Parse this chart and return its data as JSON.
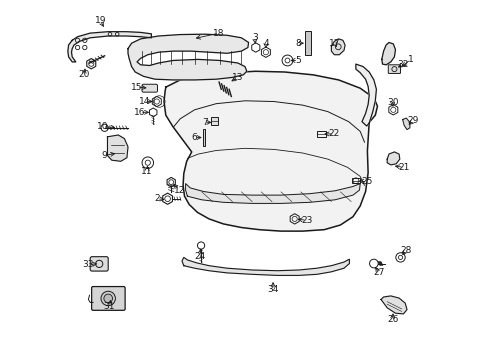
{
  "bg_color": "#ffffff",
  "line_color": "#1a1a1a",
  "figsize": [
    4.9,
    3.6
  ],
  "dpi": 100,
  "label_info": [
    [
      1,
      0.93,
      0.81,
      0.96,
      0.835
    ],
    [
      2,
      0.285,
      0.445,
      0.255,
      0.448
    ],
    [
      3,
      0.53,
      0.87,
      0.527,
      0.895
    ],
    [
      4,
      0.558,
      0.858,
      0.558,
      0.88
    ],
    [
      5,
      0.618,
      0.832,
      0.648,
      0.832
    ],
    [
      6,
      0.388,
      0.618,
      0.36,
      0.618
    ],
    [
      7,
      0.415,
      0.66,
      0.388,
      0.66
    ],
    [
      8,
      0.672,
      0.88,
      0.648,
      0.88
    ],
    [
      9,
      0.148,
      0.575,
      0.108,
      0.568
    ],
    [
      10,
      0.148,
      0.645,
      0.105,
      0.648
    ],
    [
      11,
      0.23,
      0.548,
      0.228,
      0.525
    ],
    [
      12,
      0.295,
      0.495,
      0.318,
      0.472
    ],
    [
      13,
      0.455,
      0.77,
      0.48,
      0.785
    ],
    [
      14,
      0.252,
      0.718,
      0.22,
      0.718
    ],
    [
      15,
      0.235,
      0.755,
      0.2,
      0.758
    ],
    [
      16,
      0.242,
      0.688,
      0.208,
      0.688
    ],
    [
      17,
      0.758,
      0.862,
      0.75,
      0.878
    ],
    [
      18,
      0.355,
      0.892,
      0.428,
      0.908
    ],
    [
      19,
      0.112,
      0.918,
      0.098,
      0.942
    ],
    [
      20,
      0.058,
      0.818,
      0.052,
      0.792
    ],
    [
      21,
      0.908,
      0.54,
      0.942,
      0.535
    ],
    [
      22,
      0.712,
      0.628,
      0.748,
      0.628
    ],
    [
      23,
      0.638,
      0.392,
      0.672,
      0.388
    ],
    [
      24,
      0.378,
      0.318,
      0.375,
      0.288
    ],
    [
      25,
      0.808,
      0.498,
      0.84,
      0.495
    ],
    [
      26,
      0.912,
      0.138,
      0.91,
      0.112
    ],
    [
      27,
      0.858,
      0.265,
      0.872,
      0.242
    ],
    [
      28,
      0.932,
      0.285,
      0.948,
      0.305
    ],
    [
      29,
      0.948,
      0.648,
      0.968,
      0.665
    ],
    [
      30,
      0.912,
      0.695,
      0.91,
      0.715
    ],
    [
      31,
      0.13,
      0.175,
      0.122,
      0.148
    ],
    [
      32,
      0.918,
      0.808,
      0.94,
      0.822
    ],
    [
      33,
      0.098,
      0.268,
      0.065,
      0.265
    ],
    [
      34,
      0.578,
      0.225,
      0.578,
      0.195
    ]
  ]
}
